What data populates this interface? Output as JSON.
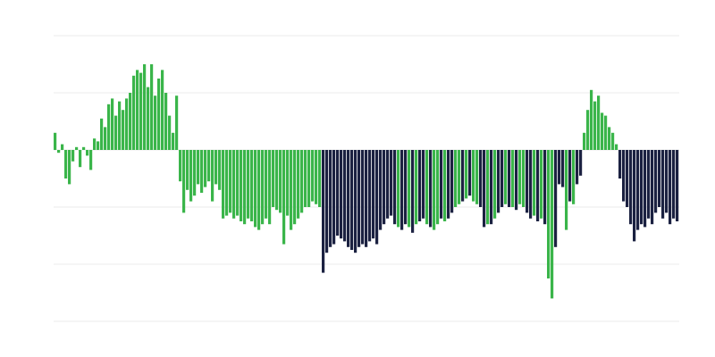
{
  "chart_data": {
    "type": "bar",
    "title": "",
    "xlabel": "",
    "ylabel": "",
    "ylim": [
      -3,
      2
    ],
    "grid": true,
    "legend": "none",
    "palette": [
      "#3ab54a",
      "#1b2141"
    ],
    "gridline_color": "#ebebeb",
    "values": [
      0.3,
      -0.05,
      0.1,
      -0.5,
      -0.6,
      -0.2,
      0.05,
      -0.3,
      0.05,
      -0.1,
      -0.35,
      0.2,
      0.15,
      0.55,
      0.4,
      0.8,
      0.9,
      0.6,
      0.85,
      0.7,
      0.9,
      1.0,
      1.3,
      1.4,
      1.35,
      1.5,
      1.1,
      1.5,
      0.95,
      1.25,
      1.4,
      1.0,
      0.6,
      0.3,
      0.95,
      -0.55,
      -1.1,
      -0.7,
      -0.9,
      -0.8,
      -0.6,
      -0.75,
      -0.65,
      -0.55,
      -0.9,
      -0.6,
      -0.7,
      -1.2,
      -1.15,
      -1.1,
      -1.2,
      -1.15,
      -1.25,
      -1.3,
      -1.2,
      -1.25,
      -1.35,
      -1.4,
      -1.3,
      -1.2,
      -1.3,
      -1.0,
      -1.05,
      -1.1,
      -1.65,
      -1.15,
      -1.4,
      -1.3,
      -1.2,
      -1.1,
      -1.0,
      -1.0,
      -0.9,
      -0.95,
      -1.0,
      -2.15,
      -1.8,
      -1.7,
      -1.65,
      -1.5,
      -1.55,
      -1.6,
      -1.7,
      -1.75,
      -1.8,
      -1.7,
      -1.65,
      -1.7,
      -1.6,
      -1.55,
      -1.65,
      -1.4,
      -1.3,
      -1.2,
      -1.15,
      -1.3,
      -1.35,
      -1.4,
      -1.3,
      -1.35,
      -1.45,
      -1.3,
      -1.25,
      -1.2,
      -1.3,
      -1.35,
      -1.4,
      -1.3,
      -1.2,
      -1.25,
      -1.2,
      -1.1,
      -1.0,
      -0.95,
      -0.9,
      -0.85,
      -0.8,
      -0.9,
      -0.95,
      -1.0,
      -1.35,
      -1.3,
      -1.3,
      -1.2,
      -1.1,
      -1.0,
      -0.95,
      -1.0,
      -1.0,
      -1.05,
      -0.95,
      -1.0,
      -1.1,
      -1.2,
      -1.15,
      -1.25,
      -1.2,
      -1.3,
      -2.25,
      -2.6,
      -1.7,
      -0.6,
      -0.65,
      -1.4,
      -0.9,
      -0.95,
      -0.6,
      -0.45,
      0.3,
      0.7,
      1.05,
      0.85,
      0.95,
      0.65,
      0.6,
      0.4,
      0.3,
      0.1,
      -0.5,
      -0.9,
      -1.0,
      -1.3,
      -1.6,
      -1.4,
      -1.3,
      -1.35,
      -1.2,
      -1.3,
      -1.1,
      -1.0,
      -1.2,
      -1.1,
      -1.3,
      -1.2,
      -1.25
    ],
    "color_index": [
      0,
      0,
      0,
      0,
      0,
      0,
      0,
      0,
      0,
      0,
      0,
      0,
      0,
      0,
      0,
      0,
      0,
      0,
      0,
      0,
      0,
      0,
      0,
      0,
      0,
      0,
      0,
      0,
      0,
      0,
      0,
      0,
      0,
      0,
      0,
      0,
      0,
      0,
      0,
      0,
      0,
      0,
      0,
      0,
      0,
      0,
      0,
      0,
      0,
      0,
      0,
      0,
      0,
      0,
      0,
      0,
      0,
      0,
      0,
      0,
      0,
      0,
      0,
      0,
      0,
      0,
      0,
      0,
      0,
      0,
      0,
      0,
      0,
      0,
      0,
      1,
      1,
      1,
      1,
      1,
      1,
      1,
      1,
      1,
      1,
      1,
      1,
      1,
      1,
      1,
      1,
      1,
      1,
      1,
      1,
      1,
      0,
      1,
      1,
      0,
      1,
      0,
      1,
      1,
      0,
      1,
      0,
      0,
      1,
      0,
      1,
      1,
      0,
      0,
      1,
      0,
      1,
      0,
      0,
      1,
      1,
      0,
      1,
      0,
      1,
      1,
      0,
      1,
      0,
      1,
      0,
      0,
      1,
      1,
      0,
      1,
      0,
      1,
      0,
      0,
      1,
      1,
      1,
      0,
      1,
      0,
      1,
      1,
      0,
      0,
      0,
      0,
      0,
      0,
      0,
      0,
      0,
      0,
      1,
      1,
      1,
      1,
      1,
      1,
      1,
      1,
      1,
      1,
      1,
      1,
      1,
      1,
      1,
      1,
      1
    ]
  }
}
